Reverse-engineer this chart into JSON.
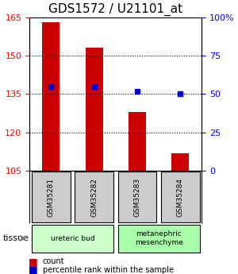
{
  "title": "GDS1572 / U21101_at",
  "samples": [
    "GSM35281",
    "GSM35282",
    "GSM35283",
    "GSM35284"
  ],
  "count_values": [
    163,
    153,
    128,
    112
  ],
  "percentile_values": [
    138,
    138,
    136,
    135
  ],
  "y_min": 105,
  "y_max": 165,
  "y_ticks": [
    105,
    120,
    135,
    150,
    165
  ],
  "y2_ticks": [
    0,
    25,
    50,
    75,
    100
  ],
  "y2_tick_positions": [
    105,
    120,
    135,
    150,
    165
  ],
  "bar_color": "#cc0000",
  "dot_color": "#0000cc",
  "tissue_groups": [
    {
      "label": "ureteric bud",
      "samples": [
        0,
        1
      ],
      "color": "#ccffcc"
    },
    {
      "label": "metanephric\nmesenchyme",
      "samples": [
        2,
        3
      ],
      "color": "#aaffaa"
    }
  ],
  "tissue_label": "tissue",
  "legend_count_label": "count",
  "legend_percentile_label": "percentile rank within the sample",
  "bar_width": 0.4,
  "sample_box_color": "#cccccc",
  "grid_color": "#000000",
  "title_fontsize": 11,
  "tick_fontsize": 8,
  "label_fontsize": 8
}
